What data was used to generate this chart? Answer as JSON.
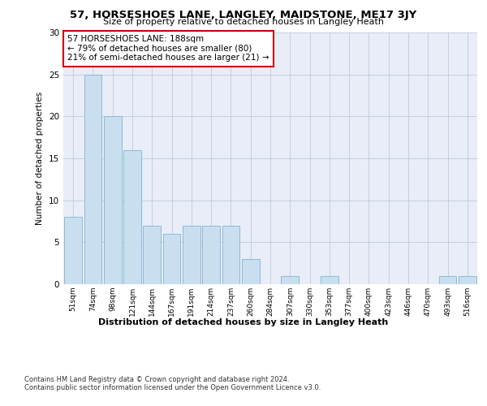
{
  "title": "57, HORSESHOES LANE, LANGLEY, MAIDSTONE, ME17 3JY",
  "subtitle": "Size of property relative to detached houses in Langley Heath",
  "xlabel": "Distribution of detached houses by size in Langley Heath",
  "ylabel": "Number of detached properties",
  "categories": [
    "51sqm",
    "74sqm",
    "98sqm",
    "121sqm",
    "144sqm",
    "167sqm",
    "191sqm",
    "214sqm",
    "237sqm",
    "260sqm",
    "284sqm",
    "307sqm",
    "330sqm",
    "353sqm",
    "377sqm",
    "400sqm",
    "423sqm",
    "446sqm",
    "470sqm",
    "493sqm",
    "516sqm"
  ],
  "values": [
    8,
    25,
    20,
    16,
    7,
    6,
    7,
    7,
    7,
    3,
    0,
    1,
    0,
    1,
    0,
    0,
    0,
    0,
    0,
    1,
    1
  ],
  "bar_color": "#c9dff0",
  "bar_edge_color": "#7fb3d3",
  "highlight_index": 8,
  "annotation_text": "57 HORSESHOES LANE: 188sqm\n← 79% of detached houses are smaller (80)\n21% of semi-detached houses are larger (21) →",
  "annotation_box_color": "#ffffff",
  "annotation_box_edge_color": "#cc0000",
  "ylim": [
    0,
    30
  ],
  "yticks": [
    0,
    5,
    10,
    15,
    20,
    25,
    30
  ],
  "bg_color": "#e8edf8",
  "footer_line1": "Contains HM Land Registry data © Crown copyright and database right 2024.",
  "footer_line2": "Contains public sector information licensed under the Open Government Licence v3.0."
}
